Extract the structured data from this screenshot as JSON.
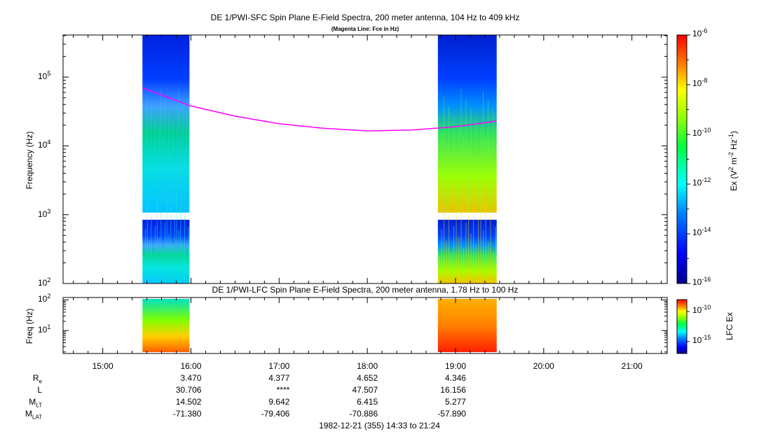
{
  "main_panel": {
    "title": "DE 1/PWI-SFC  Spin Plane E-Field Spectra, 200 meter antenna, 104 Hz to 409 kHz",
    "subtitle": "(Magenta Line: Fce in Hz)",
    "ylabel": "Frequency (Hz)",
    "y_ticks": [
      {
        "base": "10",
        "exp": "2",
        "value": 100
      },
      {
        "base": "10",
        "exp": "3",
        "value": 1000
      },
      {
        "base": "10",
        "exp": "4",
        "value": 10000
      },
      {
        "base": "10",
        "exp": "5",
        "value": 100000
      }
    ]
  },
  "colorbar_main": {
    "label_html": "Ex (V<sup>2</sup> m<sup>-2</sup> Hz<sup>-1</sup>)",
    "ticks": [
      {
        "base": "10",
        "exp": "-6",
        "value": -6
      },
      {
        "base": "10",
        "exp": "-8",
        "value": -8
      },
      {
        "base": "10",
        "exp": "-10",
        "value": -10
      },
      {
        "base": "10",
        "exp": "-12",
        "value": -12
      },
      {
        "base": "10",
        "exp": "-14",
        "value": -14
      },
      {
        "base": "10",
        "exp": "-16",
        "value": -16
      }
    ]
  },
  "lower_panel": {
    "title": "DE 1/PWI-LFC  Spin Plane E-Field Spectra, 200 meter antenna, 1.78 Hz to 100 Hz",
    "ylabel": "Freq (Hz)",
    "y_ticks": [
      {
        "base": "10",
        "exp": "1",
        "value": 10
      },
      {
        "base": "10",
        "exp": "2",
        "value": 100
      }
    ]
  },
  "colorbar_lower": {
    "label": "LFC Ex",
    "ticks": [
      {
        "base": "10",
        "exp": "-10",
        "value": -10
      },
      {
        "base": "10",
        "exp": "-15",
        "value": -15
      }
    ]
  },
  "x_ticks": [
    "15:00",
    "16:00",
    "17:00",
    "18:00",
    "19:00",
    "20:00",
    "21:00"
  ],
  "ephemeris": {
    "labels": [
      {
        "main": "R",
        "sub": "e"
      },
      {
        "main": "L",
        "sub": ""
      },
      {
        "main": "M",
        "sub": "LT"
      },
      {
        "main": "M",
        "sub": "LAT"
      }
    ],
    "columns": [
      {
        "time": "16:00",
        "values": [
          "3.470",
          "30.706",
          "14.502",
          "-71.380"
        ]
      },
      {
        "time": "17:00",
        "values": [
          "4.377",
          "****",
          "9.642",
          "-79.406"
        ]
      },
      {
        "time": "18:00",
        "values": [
          "4.652",
          "47.507",
          "6.415",
          "-70.886"
        ]
      },
      {
        "time": "19:00",
        "values": [
          "4.346",
          "16.156",
          "5.277",
          "-57.890"
        ]
      }
    ]
  },
  "footer": "1982-12-21 (355) 14:33 to 21:24",
  "colors": {
    "fce_line": "#ff00ff",
    "background": "#ffffff"
  },
  "chart_data": {
    "type": "heatmap",
    "x_time_range": [
      "14:33",
      "21:24"
    ],
    "y_range_main_hz": [
      100,
      409000
    ],
    "y_scale": "log",
    "data_intervals": [
      {
        "start": "15:27",
        "end": "15:59"
      },
      {
        "start": "18:48",
        "end": "19:28"
      }
    ],
    "fce_line": {
      "x": [
        "15:27",
        "16:00",
        "16:30",
        "17:00",
        "17:30",
        "18:00",
        "18:30",
        "19:00",
        "19:28"
      ],
      "y": [
        70000,
        38000,
        27000,
        21000,
        18000,
        16500,
        17000,
        19000,
        23000
      ]
    },
    "colorbar_range_log10": [
      -16,
      -6
    ]
  }
}
